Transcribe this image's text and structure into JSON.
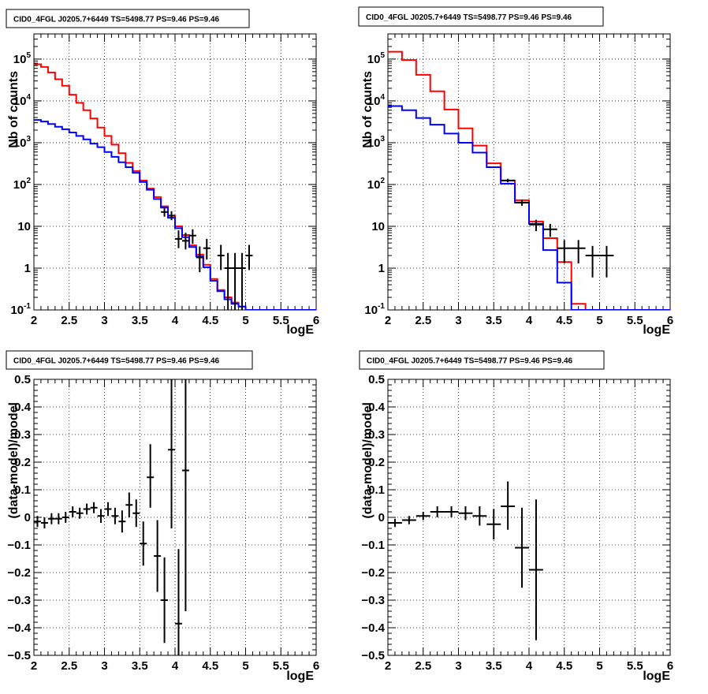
{
  "colors": {
    "data": "#000000",
    "model_red": "#ff0000",
    "model_blue": "#0000ff",
    "grid": "#000000"
  },
  "chart_data": [
    {
      "id": "top-left",
      "type": "line",
      "title": "CID0_4FGL J0205.7+6449 TS=5498.77 PS=9.46 PS=9.46",
      "xlabel": "logE",
      "ylabel": "Nb of counts",
      "log_y": true,
      "xlim": [
        2,
        6
      ],
      "ylim": [
        0.1,
        400000
      ],
      "x_ticks": [
        "2",
        "2.5",
        "3",
        "3.5",
        "4",
        "4.5",
        "5",
        "5.5",
        "6"
      ],
      "y_ticks": [
        {
          "v": 0.1,
          "base": "10",
          "exp": "-1"
        },
        {
          "v": 1,
          "base": "1",
          "exp": ""
        },
        {
          "v": 10,
          "base": "10",
          "exp": ""
        },
        {
          "v": 100,
          "base": "10",
          "exp": "2"
        },
        {
          "v": 1000,
          "base": "10",
          "exp": "3"
        },
        {
          "v": 10000,
          "base": "10",
          "exp": "4"
        },
        {
          "v": 100000,
          "base": "10",
          "exp": "5"
        }
      ],
      "bin_width": 0.1,
      "series": [
        {
          "color_key": "model_red",
          "bins_lo": [
            2.0,
            2.1,
            2.2,
            2.3,
            2.4,
            2.5,
            2.6,
            2.7,
            2.8,
            2.9,
            3.0,
            3.1,
            3.2,
            3.3,
            3.4,
            3.5,
            3.6,
            3.7,
            3.8,
            3.9,
            4.0,
            4.1,
            4.2,
            4.3,
            4.4,
            4.5,
            4.6,
            4.7,
            4.8,
            4.9,
            5.0,
            5.1,
            5.2,
            5.3,
            5.4,
            5.5,
            5.6,
            5.7,
            5.8,
            5.9
          ],
          "values": [
            75000,
            65000,
            48000,
            33000,
            23000,
            14000,
            9000,
            6000,
            3800,
            2300,
            1450,
            900,
            560,
            330,
            210,
            125,
            80,
            50,
            30,
            18,
            10,
            6.2,
            3.5,
            2.1,
            1.2,
            0.55,
            0.3,
            0.2,
            0.15,
            0.12,
            0.1,
            0.1,
            0.1,
            0.1,
            0.1,
            0.1,
            0.1,
            0.1,
            0.1,
            0.1
          ]
        },
        {
          "color_key": "model_blue",
          "bins_lo": [
            2.0,
            2.1,
            2.2,
            2.3,
            2.4,
            2.5,
            2.6,
            2.7,
            2.8,
            2.9,
            3.0,
            3.1,
            3.2,
            3.3,
            3.4,
            3.5,
            3.6,
            3.7,
            3.8,
            3.9,
            4.0,
            4.1,
            4.2,
            4.3,
            4.4,
            4.5,
            4.6,
            4.7,
            4.8,
            4.9,
            5.0,
            5.1,
            5.2,
            5.3,
            5.4,
            5.5,
            5.6,
            5.7,
            5.8,
            5.9
          ],
          "values": [
            3500,
            3200,
            2800,
            2400,
            2100,
            1750,
            1450,
            1200,
            950,
            780,
            600,
            460,
            340,
            260,
            190,
            115,
            75,
            45,
            28,
            16,
            9,
            5.5,
            3.2,
            1.9,
            1.05,
            0.5,
            0.28,
            0.18,
            0.14,
            0.12,
            0.1,
            0.1,
            0.1,
            0.1,
            0.1,
            0.1,
            0.1,
            0.1,
            0.1,
            0.1
          ]
        }
      ],
      "points": [
        {
          "x": 3.85,
          "y": 22,
          "lo": 17,
          "hi": 27
        },
        {
          "x": 3.95,
          "y": 18,
          "lo": 14,
          "hi": 23
        },
        {
          "x": 4.05,
          "y": 5,
          "lo": 3,
          "hi": 8
        },
        {
          "x": 4.15,
          "y": 4.5,
          "lo": 2.8,
          "hi": 7
        },
        {
          "x": 4.25,
          "y": 6,
          "lo": 3.8,
          "hi": 8.5
        },
        {
          "x": 4.35,
          "y": 1.8,
          "lo": 0.8,
          "hi": 3.3
        },
        {
          "x": 4.45,
          "y": 3,
          "lo": 1.6,
          "hi": 5
        },
        {
          "x": 4.65,
          "y": 2,
          "lo": 0.9,
          "hi": 3.6
        },
        {
          "x": 4.75,
          "y": 1,
          "lo": 0.1,
          "hi": 2.3
        },
        {
          "x": 4.85,
          "y": 1,
          "lo": 0.1,
          "hi": 2.3
        },
        {
          "x": 4.95,
          "y": 1,
          "lo": 0.1,
          "hi": 2.3
        },
        {
          "x": 5.05,
          "y": 2,
          "lo": 0.9,
          "hi": 3.6
        }
      ]
    },
    {
      "id": "top-right",
      "type": "line",
      "title": "CID0_4FGL J0205.7+6449 TS=5498.77 PS=9.46 PS=9.46",
      "xlabel": "logE",
      "ylabel": "Nb of counts",
      "log_y": true,
      "xlim": [
        2,
        6
      ],
      "ylim": [
        0.1,
        400000
      ],
      "x_ticks": [
        "2",
        "2.5",
        "3",
        "3.5",
        "4",
        "4.5",
        "5",
        "5.5",
        "6"
      ],
      "y_ticks": [
        {
          "v": 0.1,
          "base": "10",
          "exp": "-1"
        },
        {
          "v": 1,
          "base": "1",
          "exp": ""
        },
        {
          "v": 10,
          "base": "10",
          "exp": ""
        },
        {
          "v": 100,
          "base": "10",
          "exp": "2"
        },
        {
          "v": 1000,
          "base": "10",
          "exp": "3"
        },
        {
          "v": 10000,
          "base": "10",
          "exp": "4"
        },
        {
          "v": 100000,
          "base": "10",
          "exp": "5"
        }
      ],
      "bin_width": 0.2,
      "series": [
        {
          "color_key": "model_red",
          "bins_lo": [
            2.0,
            2.2,
            2.4,
            2.6,
            2.8,
            3.0,
            3.2,
            3.4,
            3.6,
            3.8,
            4.0,
            4.2,
            4.4,
            4.6,
            4.8,
            5.0,
            5.2,
            5.4,
            5.6,
            5.8
          ],
          "values": [
            150000,
            95000,
            42000,
            17000,
            6200,
            2200,
            850,
            320,
            125,
            42,
            13,
            5.2,
            1.4,
            0.14,
            0.1,
            0.1,
            0.1,
            0.1,
            0.1,
            0.1
          ]
        },
        {
          "color_key": "model_blue",
          "bins_lo": [
            2.0,
            2.2,
            2.4,
            2.6,
            2.8,
            3.0,
            3.2,
            3.4,
            3.6,
            3.8,
            4.0,
            4.2,
            4.4,
            4.6,
            4.8,
            5.0,
            5.2,
            5.4,
            5.6,
            5.8
          ],
          "values": [
            7500,
            6000,
            3900,
            2700,
            1650,
            1000,
            580,
            260,
            105,
            37,
            11.5,
            2.7,
            0.45,
            0.1,
            0.1,
            0.1,
            0.1,
            0.1,
            0.1,
            0.1
          ]
        }
      ],
      "points": [
        {
          "x": 3.7,
          "y": 125,
          "lo": 113,
          "hi": 137
        },
        {
          "x": 3.9,
          "y": 37,
          "lo": 31,
          "hi": 43
        },
        {
          "x": 4.1,
          "y": 11,
          "lo": 7.7,
          "hi": 14.3
        },
        {
          "x": 4.3,
          "y": 8.5,
          "lo": 5.6,
          "hi": 11.4
        },
        {
          "x": 4.5,
          "y": 3,
          "lo": 1.3,
          "hi": 4.7
        },
        {
          "x": 4.7,
          "y": 3,
          "lo": 1.3,
          "hi": 4.7
        },
        {
          "x": 4.9,
          "y": 2,
          "lo": 0.6,
          "hi": 3.4
        },
        {
          "x": 5.1,
          "y": 2,
          "lo": 0.6,
          "hi": 3.4
        }
      ]
    },
    {
      "id": "bottom-left",
      "type": "scatter",
      "title": "CID0_4FGL J0205.7+6449 TS=5498.77 PS=9.46 PS=9.46",
      "xlabel": "logE",
      "ylabel": "(data-model)/model",
      "log_y": false,
      "xlim": [
        2,
        6
      ],
      "ylim": [
        -0.5,
        0.5
      ],
      "x_ticks": [
        "2",
        "2.5",
        "3",
        "3.5",
        "4",
        "4.5",
        "5",
        "5.5",
        "6"
      ],
      "y_ticks": [
        {
          "v": -0.5,
          "label": "−0.5"
        },
        {
          "v": -0.4,
          "label": "−0.4"
        },
        {
          "v": -0.3,
          "label": "−0.3"
        },
        {
          "v": -0.2,
          "label": "−0.2"
        },
        {
          "v": -0.1,
          "label": "−0.1"
        },
        {
          "v": 0,
          "label": "0"
        },
        {
          "v": 0.1,
          "label": "0.1"
        },
        {
          "v": 0.2,
          "label": "0.2"
        },
        {
          "v": 0.3,
          "label": "0.3"
        },
        {
          "v": 0.4,
          "label": "0.4"
        },
        {
          "v": 0.5,
          "label": "0.5"
        }
      ],
      "bin_width": 0.1,
      "points": [
        {
          "x": 2.05,
          "y": -0.015,
          "lo": -0.035,
          "hi": 0.005
        },
        {
          "x": 2.15,
          "y": -0.02,
          "lo": -0.04,
          "hi": 0.0
        },
        {
          "x": 2.25,
          "y": -0.005,
          "lo": -0.025,
          "hi": 0.015
        },
        {
          "x": 2.35,
          "y": -0.005,
          "lo": -0.025,
          "hi": 0.015
        },
        {
          "x": 2.45,
          "y": 0.0,
          "lo": -0.02,
          "hi": 0.02
        },
        {
          "x": 2.55,
          "y": 0.02,
          "lo": 0.0,
          "hi": 0.04
        },
        {
          "x": 2.65,
          "y": 0.015,
          "lo": -0.005,
          "hi": 0.035
        },
        {
          "x": 2.75,
          "y": 0.03,
          "lo": 0.01,
          "hi": 0.05
        },
        {
          "x": 2.85,
          "y": 0.035,
          "lo": 0.015,
          "hi": 0.055
        },
        {
          "x": 2.95,
          "y": 0.005,
          "lo": -0.02,
          "hi": 0.03
        },
        {
          "x": 3.05,
          "y": 0.03,
          "lo": 0.005,
          "hi": 0.055
        },
        {
          "x": 3.15,
          "y": 0.005,
          "lo": -0.025,
          "hi": 0.035
        },
        {
          "x": 3.25,
          "y": -0.015,
          "lo": -0.055,
          "hi": 0.025
        },
        {
          "x": 3.35,
          "y": 0.045,
          "lo": 0.0,
          "hi": 0.09
        },
        {
          "x": 3.45,
          "y": 0.015,
          "lo": -0.035,
          "hi": 0.065
        },
        {
          "x": 3.55,
          "y": -0.095,
          "lo": -0.175,
          "hi": -0.015
        },
        {
          "x": 3.65,
          "y": 0.145,
          "lo": 0.035,
          "hi": 0.265
        },
        {
          "x": 3.75,
          "y": -0.14,
          "lo": -0.27,
          "hi": -0.01
        },
        {
          "x": 3.85,
          "y": -0.3,
          "lo": -0.455,
          "hi": -0.145
        },
        {
          "x": 3.95,
          "y": 0.245,
          "lo": -0.04,
          "hi": 0.5
        },
        {
          "x": 4.05,
          "y": -0.385,
          "lo": -0.5,
          "hi": -0.115
        },
        {
          "x": 4.15,
          "y": 0.17,
          "lo": -0.34,
          "hi": 0.5
        }
      ]
    },
    {
      "id": "bottom-right",
      "type": "scatter",
      "title": "CID0_4FGL J0205.7+6449 TS=5498.77 PS=9.46 PS=9.46",
      "xlabel": "logE",
      "ylabel": "(data-model)/model",
      "log_y": false,
      "xlim": [
        2,
        6
      ],
      "ylim": [
        -0.5,
        0.5
      ],
      "x_ticks": [
        "2",
        "2.5",
        "3",
        "3.5",
        "4",
        "4.5",
        "5",
        "5.5",
        "6"
      ],
      "y_ticks": [
        {
          "v": -0.5,
          "label": "−0.5"
        },
        {
          "v": -0.4,
          "label": "−0.4"
        },
        {
          "v": -0.3,
          "label": "−0.3"
        },
        {
          "v": -0.2,
          "label": "−0.2"
        },
        {
          "v": -0.1,
          "label": "−0.1"
        },
        {
          "v": 0,
          "label": "0"
        },
        {
          "v": 0.1,
          "label": "0.1"
        },
        {
          "v": 0.2,
          "label": "0.2"
        },
        {
          "v": 0.3,
          "label": "0.3"
        },
        {
          "v": 0.4,
          "label": "0.4"
        },
        {
          "v": 0.5,
          "label": "0.5"
        }
      ],
      "bin_width": 0.2,
      "points": [
        {
          "x": 2.1,
          "y": -0.02,
          "lo": -0.035,
          "hi": -0.005
        },
        {
          "x": 2.3,
          "y": -0.01,
          "lo": -0.025,
          "hi": 0.005
        },
        {
          "x": 2.5,
          "y": 0.005,
          "lo": -0.01,
          "hi": 0.02
        },
        {
          "x": 2.7,
          "y": 0.02,
          "lo": 0.0,
          "hi": 0.04
        },
        {
          "x": 2.9,
          "y": 0.02,
          "lo": 0.0,
          "hi": 0.04
        },
        {
          "x": 3.1,
          "y": 0.015,
          "lo": -0.01,
          "hi": 0.04
        },
        {
          "x": 3.3,
          "y": 0.005,
          "lo": -0.03,
          "hi": 0.04
        },
        {
          "x": 3.5,
          "y": -0.025,
          "lo": -0.08,
          "hi": 0.03
        },
        {
          "x": 3.7,
          "y": 0.04,
          "lo": -0.045,
          "hi": 0.13
        },
        {
          "x": 3.9,
          "y": -0.11,
          "lo": -0.255,
          "hi": 0.035
        },
        {
          "x": 4.1,
          "y": -0.19,
          "lo": -0.445,
          "hi": 0.065
        }
      ]
    }
  ]
}
